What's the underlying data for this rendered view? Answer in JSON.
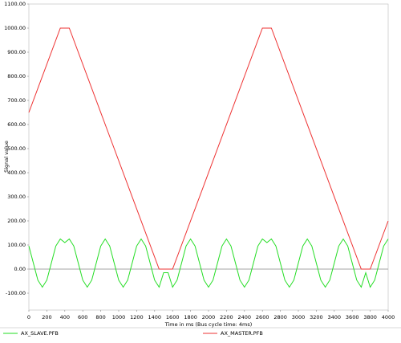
{
  "chart_data": {
    "type": "line",
    "xlabel": "Time in ms (Bus cycle time: 4ms)",
    "ylabel": "Signal value",
    "xlim": [
      0,
      4000
    ],
    "ylim": [
      -170,
      1100
    ],
    "xticks": [
      0,
      200,
      400,
      600,
      800,
      1000,
      1200,
      1400,
      1600,
      1800,
      2000,
      2200,
      2400,
      2600,
      2800,
      3000,
      3200,
      3400,
      3600,
      3800,
      4000
    ],
    "yticks": [
      {
        "value": -100,
        "label": "-100.00"
      },
      {
        "value": 0,
        "label": "0.00"
      },
      {
        "value": 100,
        "label": "100.00"
      },
      {
        "value": 200,
        "label": "200.00"
      },
      {
        "value": 300,
        "label": "300.00"
      },
      {
        "value": 400,
        "label": "400.00"
      },
      {
        "value": 500,
        "label": "500.00"
      },
      {
        "value": 600,
        "label": "600.00"
      },
      {
        "value": 700,
        "label": "700.00"
      },
      {
        "value": 800,
        "label": "800.00"
      },
      {
        "value": 900,
        "label": "900.00"
      },
      {
        "value": 1000,
        "label": "1000.00"
      },
      {
        "value": 1100,
        "label": "1100.00"
      }
    ],
    "series": [
      {
        "name": "AX_SLAVE.PFB",
        "color": "#22dd22",
        "x": [
          0,
          50,
          100,
          150,
          200,
          250,
          300,
          350,
          400,
          450,
          500,
          550,
          600,
          650,
          700,
          750,
          800,
          850,
          900,
          950,
          1000,
          1050,
          1100,
          1150,
          1200,
          1250,
          1300,
          1350,
          1400,
          1450,
          1500,
          1550,
          1600,
          1650,
          1700,
          1750,
          1800,
          1850,
          1900,
          1950,
          2000,
          2050,
          2100,
          2150,
          2200,
          2250,
          2300,
          2350,
          2400,
          2450,
          2500,
          2550,
          2600,
          2650,
          2700,
          2750,
          2800,
          2850,
          2900,
          2950,
          3000,
          3050,
          3100,
          3150,
          3200,
          3250,
          3300,
          3350,
          3400,
          3450,
          3500,
          3550,
          3600,
          3650,
          3700,
          3750,
          3800,
          3850,
          3900,
          3950,
          4000
        ],
        "values": [
          95.7,
          25,
          -45.7,
          -75,
          -45.7,
          25,
          95.7,
          125,
          110,
          125,
          95.7,
          25,
          -45.7,
          -75,
          -45.7,
          25,
          95.7,
          125,
          95.7,
          25,
          -45.7,
          -75,
          -45.7,
          25,
          95.7,
          125,
          95.7,
          25,
          -45.7,
          -75,
          -15,
          -15,
          -75,
          -45.7,
          25,
          95.7,
          125,
          95.7,
          25,
          -45.7,
          -75,
          -45.7,
          25,
          95.7,
          125,
          95.7,
          25,
          -45.7,
          -75,
          -45.7,
          25,
          95.7,
          125,
          110,
          125,
          95.7,
          25,
          -45.7,
          -75,
          -45.7,
          25,
          95.7,
          125,
          95.7,
          25,
          -45.7,
          -75,
          -45.7,
          25,
          95.7,
          125,
          95.7,
          25,
          -45.7,
          -75,
          -15,
          -75,
          -45.7,
          25,
          95.7,
          125
        ]
      },
      {
        "name": "AX_MASTER.PFB",
        "color": "#ee3333",
        "x": [
          0,
          350,
          450,
          1450,
          1600,
          2600,
          2700,
          3700,
          3800,
          4000
        ],
        "values": [
          650,
          1000,
          1000,
          0,
          0,
          1000,
          1000,
          0,
          0,
          200
        ]
      }
    ]
  }
}
